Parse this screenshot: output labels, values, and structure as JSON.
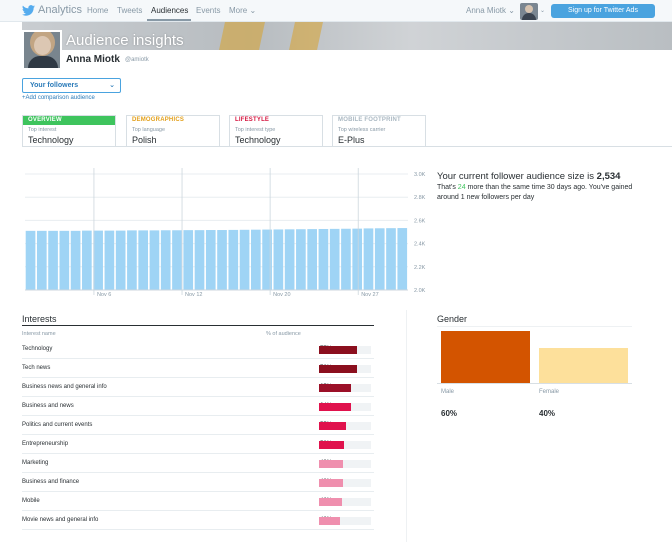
{
  "nav": {
    "brand": "Analytics",
    "links": [
      "Home",
      "Tweets",
      "Audiences",
      "Events",
      "More"
    ],
    "user": "Anna Miotk",
    "signup": "Sign up for Twitter Ads",
    "colors": {
      "bar": "#f5f8fa",
      "button": "#4aa3df"
    }
  },
  "header": {
    "title": "Audience insights",
    "name": "Anna Miotk",
    "handle": "@amiotk"
  },
  "audience_select": {
    "value": "Your followers",
    "add_comparison": "+Add comparison audience"
  },
  "tabs": [
    {
      "head": "OVERVIEW",
      "sub": "Top interest",
      "value": "Technology"
    },
    {
      "head": "DEMOGRAPHICS",
      "sub": "Top language",
      "value": "Polish"
    },
    {
      "head": "LIFESTYLE",
      "sub": "Top interest type",
      "value": "Technology"
    },
    {
      "head": "MOBILE FOOTPRINT",
      "sub": "Top wireless carrier",
      "value": "E-Plus"
    }
  ],
  "summary": {
    "size_prefix": "Your current follower audience size is ",
    "size_value": "2,534",
    "desc_a": "That's ",
    "desc_hl": "24",
    "desc_b": " more than the same time 30 days ago. You've gained around 1 new followers per day"
  },
  "chart_data": {
    "type": "bar",
    "x_ticks": [
      "Nov 6",
      "Nov 12",
      "Nov 20",
      "Nov 27"
    ],
    "y_ticks": [
      "3.0K",
      "2.8K",
      "2.6K",
      "2.4K",
      "2.2K",
      "2.0K"
    ],
    "ylim": [
      2000,
      3000
    ],
    "values": [
      2510,
      2510,
      2510,
      2510,
      2510,
      2512,
      2512,
      2512,
      2512,
      2514,
      2514,
      2514,
      2515,
      2515,
      2516,
      2516,
      2517,
      2517,
      2518,
      2519,
      2520,
      2521,
      2522,
      2523,
      2524,
      2525,
      2526,
      2527,
      2528,
      2529,
      2531,
      2532,
      2533,
      2534
    ],
    "color": "#9fd4f5",
    "grid": true
  },
  "interests": {
    "title": "Interests",
    "col_name": "Interest name",
    "col_pct": "% of audience",
    "rows": [
      {
        "name": "Technology",
        "pct": "77%",
        "value": 0.77,
        "color": "#8b0f1e"
      },
      {
        "name": "Tech news",
        "pct": "76%",
        "value": 0.76,
        "color": "#8b0f1e"
      },
      {
        "name": "Business news and general info",
        "pct": "65%",
        "value": 0.65,
        "color": "#9b1028"
      },
      {
        "name": "Business and news",
        "pct": "64%",
        "value": 0.64,
        "color": "#e0124d"
      },
      {
        "name": "Politics and current events",
        "pct": "55%",
        "value": 0.55,
        "color": "#e0124d"
      },
      {
        "name": "Entrepreneurship",
        "pct": "50%",
        "value": 0.5,
        "color": "#e0124d"
      },
      {
        "name": "Marketing",
        "pct": "49%",
        "value": 0.49,
        "color": "#ef8fae"
      },
      {
        "name": "Business and finance",
        "pct": "48%",
        "value": 0.48,
        "color": "#ef8fae"
      },
      {
        "name": "Mobile",
        "pct": "46%",
        "value": 0.46,
        "color": "#ef8fae"
      },
      {
        "name": "Movie news and general info",
        "pct": "42%",
        "value": 0.42,
        "color": "#ef8fae"
      }
    ]
  },
  "gender": {
    "title": "Gender",
    "items": [
      {
        "label": "Male",
        "pct": "60%",
        "value": 0.6,
        "color": "#d35400"
      },
      {
        "label": "Female",
        "pct": "40%",
        "value": 0.4,
        "color": "#fde09b"
      }
    ]
  }
}
